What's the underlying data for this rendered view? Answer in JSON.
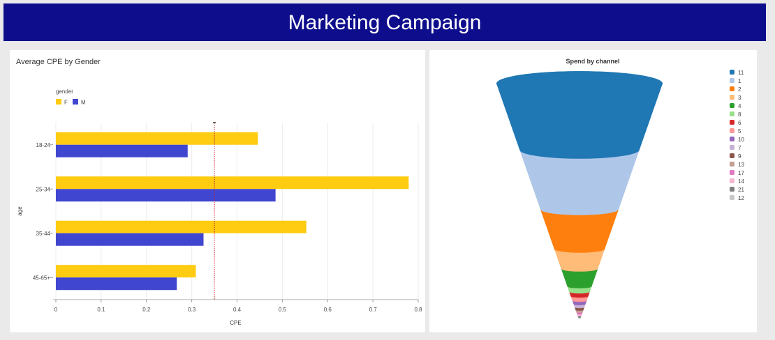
{
  "header": {
    "title": "Marketing Campaign"
  },
  "colors": {
    "header_bg": "#0e0e8c",
    "female": "#ffcc11",
    "male": "#4046cf",
    "mean_line": "#cc2222"
  },
  "chart_data": [
    {
      "type": "bar",
      "orientation": "horizontal",
      "title": "Average CPE by Gender",
      "xlabel": "CPE",
      "ylabel": "age",
      "legend_title": "gender",
      "legend_position": "top-left",
      "grid": true,
      "xlim": [
        0,
        0.8
      ],
      "xticks": [
        "0",
        "0.1",
        "0.2",
        "0.3",
        "0.4",
        "0.5",
        "0.6",
        "0.7",
        "0.8"
      ],
      "categories": [
        "18-24",
        "25-34",
        "35-44",
        "45-65+"
      ],
      "series": [
        {
          "name": "F",
          "color": "#ffcc11",
          "values": [
            0.446,
            0.779,
            0.553,
            0.309
          ]
        },
        {
          "name": "M",
          "color": "#4046cf",
          "values": [
            0.291,
            0.485,
            0.326,
            0.267
          ]
        }
      ],
      "reference_line": {
        "x": 0.35,
        "style": "dotted",
        "color": "#cc2222"
      }
    },
    {
      "type": "funnel",
      "title": "Spend by channel",
      "legend_position": "right",
      "stages": [
        {
          "name": "11",
          "color": "#1f77b4",
          "value": 30
        },
        {
          "name": "1",
          "color": "#aec7e8",
          "value": 27
        },
        {
          "name": "2",
          "color": "#ff7f0e",
          "value": 18
        },
        {
          "name": "3",
          "color": "#ffbb78",
          "value": 9
        },
        {
          "name": "4",
          "color": "#2ca02c",
          "value": 8
        },
        {
          "name": "8",
          "color": "#98df8a",
          "value": 2.5
        },
        {
          "name": "6",
          "color": "#d62728",
          "value": 2
        },
        {
          "name": "5",
          "color": "#ff9896",
          "value": 2
        },
        {
          "name": "10",
          "color": "#9467bd",
          "value": 1.6
        },
        {
          "name": "7",
          "color": "#c5b0d5",
          "value": 1.4
        },
        {
          "name": "9",
          "color": "#8c564b",
          "value": 1.2
        },
        {
          "name": "13",
          "color": "#c49c94",
          "value": 1
        },
        {
          "name": "17",
          "color": "#e377c2",
          "value": 0.9
        },
        {
          "name": "14",
          "color": "#f7b6d2",
          "value": 0.8
        },
        {
          "name": "21",
          "color": "#7f7f7f",
          "value": 0.6
        },
        {
          "name": "12",
          "color": "#c7c7c7",
          "value": 0.5
        }
      ]
    }
  ]
}
